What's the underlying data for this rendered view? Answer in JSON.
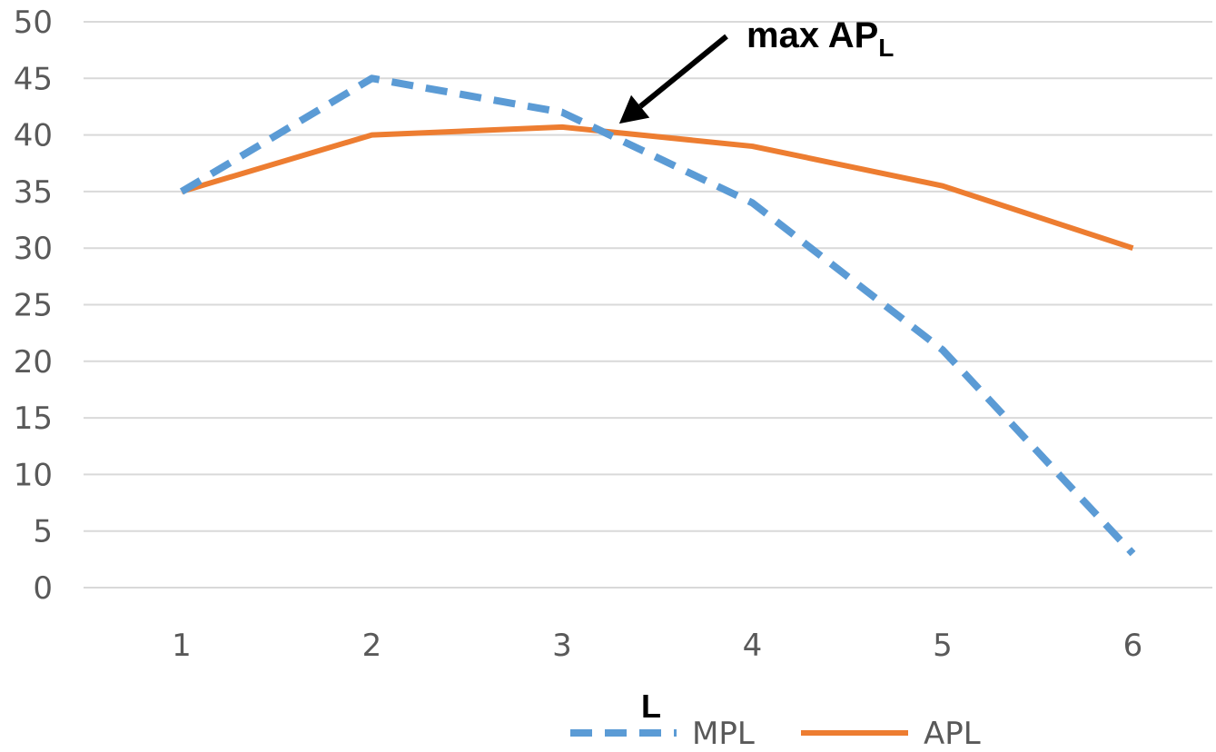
{
  "chart_data": {
    "type": "line",
    "x": [
      1,
      2,
      3,
      4,
      5,
      6
    ],
    "series": [
      {
        "name": "MPL",
        "values": [
          35,
          45,
          42,
          34,
          21,
          3
        ],
        "color": "#5B9BD5",
        "style": "dashed"
      },
      {
        "name": "APL",
        "values": [
          35,
          40,
          40.7,
          39,
          35.5,
          30
        ],
        "color": "#ED7D31",
        "style": "solid"
      }
    ],
    "xlabel": "L",
    "ylabel": "",
    "ylim": [
      0,
      50
    ],
    "yticks": [
      "0",
      "5",
      "10",
      "15",
      "20",
      "25",
      "30",
      "35",
      "40",
      "45",
      "50"
    ],
    "xticks": [
      "1",
      "2",
      "3",
      "4",
      "5",
      "6"
    ],
    "grid": true,
    "legend_position": "bottom",
    "annotation": {
      "text": "max AP",
      "subscript": "L",
      "points_to": {
        "x": 3.3,
        "y": 41
      }
    }
  }
}
